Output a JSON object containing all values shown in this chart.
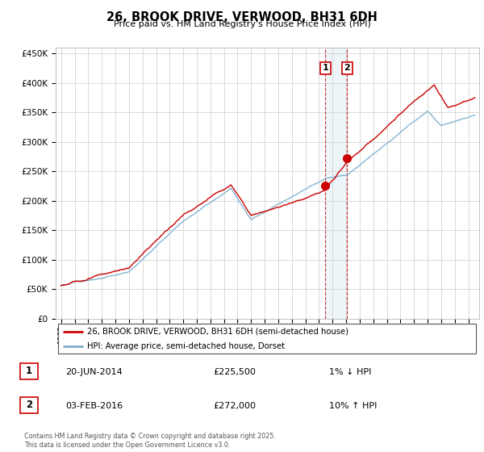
{
  "title": "26, BROOK DRIVE, VERWOOD, BH31 6DH",
  "subtitle": "Price paid vs. HM Land Registry's House Price Index (HPI)",
  "legend_line1": "26, BROOK DRIVE, VERWOOD, BH31 6DH (semi-detached house)",
  "legend_line2": "HPI: Average price, semi-detached house, Dorset",
  "marker1_date": "20-JUN-2014",
  "marker1_price": 225500,
  "marker1_label": "1% ↓ HPI",
  "marker2_date": "03-FEB-2016",
  "marker2_price": 272000,
  "marker2_label": "10% ↑ HPI",
  "footer": "Contains HM Land Registry data © Crown copyright and database right 2025.\nThis data is licensed under the Open Government Licence v3.0.",
  "ylim": [
    0,
    460000
  ],
  "red_color": "#cc0000",
  "blue_color": "#7aadcc",
  "marker1_x": 2014.47,
  "marker2_x": 2016.08
}
